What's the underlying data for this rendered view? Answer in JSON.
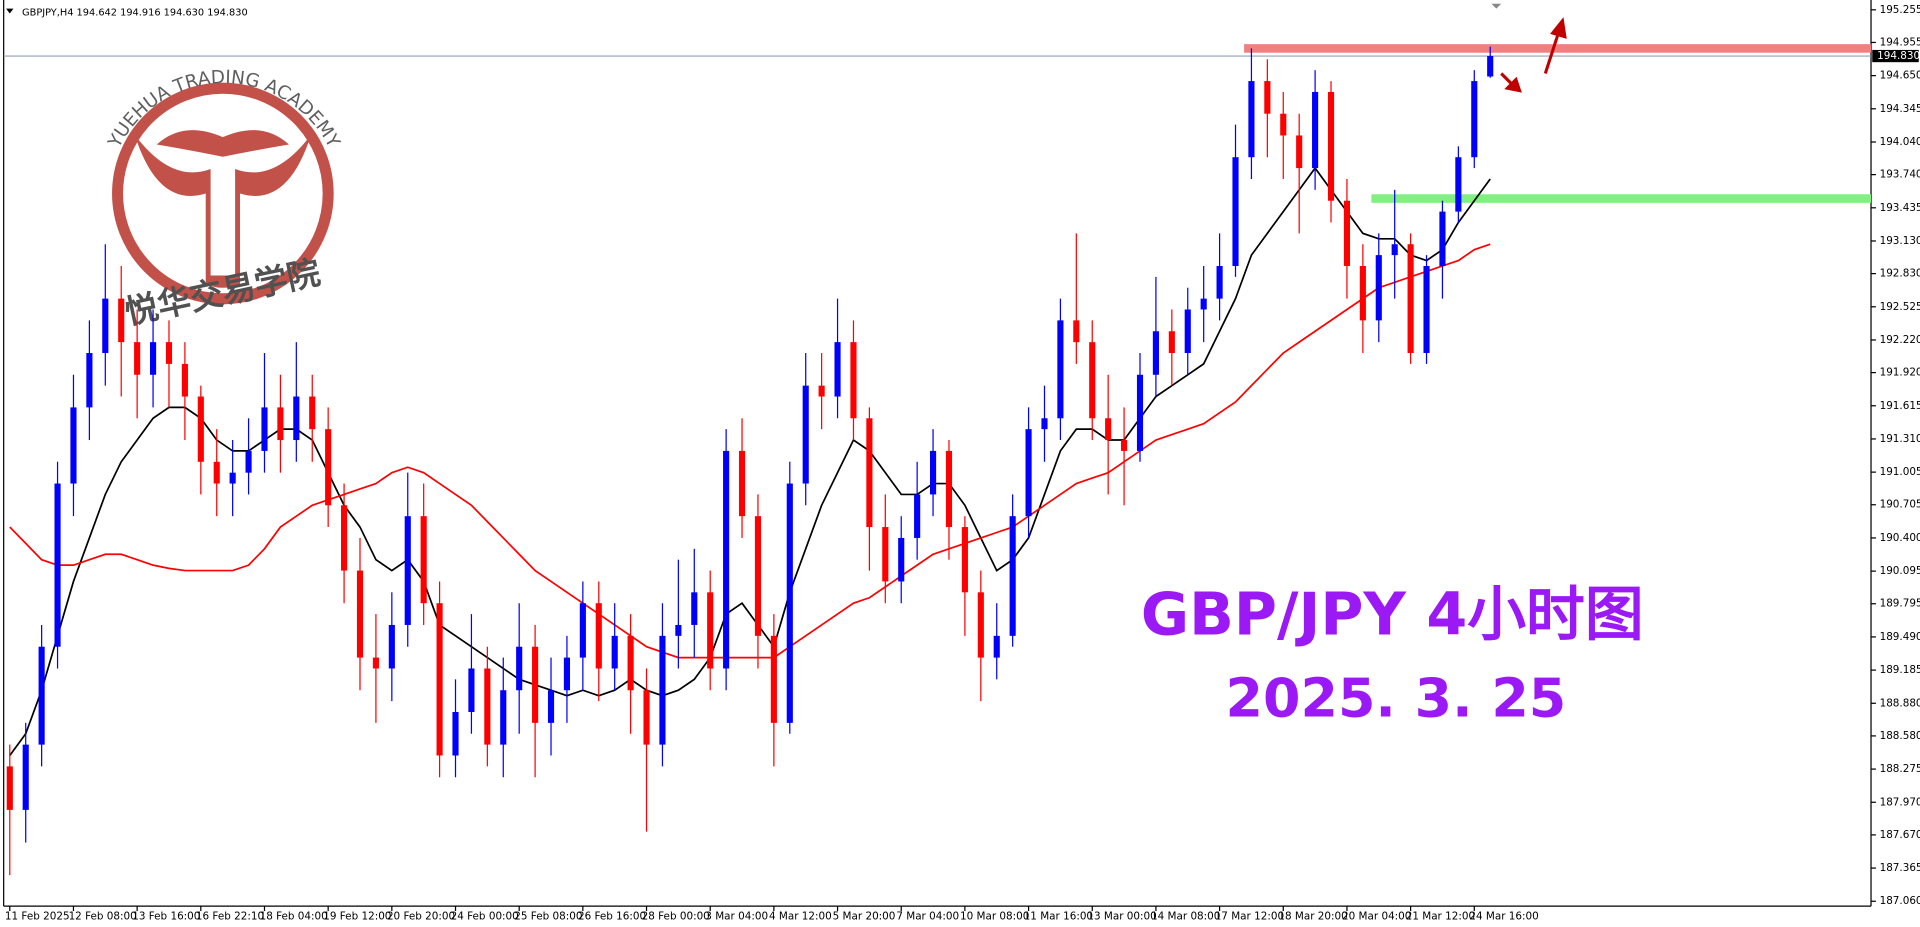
{
  "chart_data": {
    "type": "candlestick",
    "header": "GBPJPY,H4  194.642 194.916 194.630 194.830",
    "title": "GBP/JPY 4小时图",
    "subtitle": "2025. 3. 25",
    "watermark": {
      "text": "YUEHUA TRADING ACADEMY",
      "name": "悦华交易学院"
    },
    "up_color": "#0000ff",
    "down_color": "#ff0000",
    "categories": [
      "11 Feb 2025",
      null,
      null,
      null,
      "12 Feb 08:00",
      null,
      null,
      null,
      "13 Feb 16:00",
      null,
      null,
      null,
      "16 Feb 22:10",
      null,
      null,
      null,
      "18 Feb 04:00",
      null,
      null,
      null,
      "19 Feb 12:00",
      null,
      null,
      null,
      "20 Feb 20:00",
      null,
      null,
      null,
      "24 Feb 00:00",
      null,
      null,
      null,
      "25 Feb 08:00",
      null,
      null,
      null,
      "26 Feb 16:00",
      null,
      null,
      null,
      "28 Feb 00:00",
      null,
      null,
      null,
      "3 Mar 04:00",
      null,
      null,
      null,
      "4 Mar 12:00",
      null,
      null,
      null,
      "5 Mar 20:00",
      null,
      null,
      null,
      "7 Mar 04:00",
      null,
      null,
      null,
      "10 Mar 08:00",
      null,
      null,
      null,
      "11 Mar 16:00",
      null,
      null,
      null,
      "13 Mar 00:00",
      null,
      null,
      null,
      "14 Mar 08:00",
      null,
      null,
      null,
      "17 Mar 12:00",
      null,
      null,
      null,
      "18 Mar 20:00",
      null,
      null,
      null,
      "20 Mar 04:00",
      null,
      null,
      null,
      "21 Mar 12:00",
      null,
      null,
      null,
      "24 Mar 16:00",
      null
    ],
    "ohlc": [
      [
        188.3,
        188.5,
        187.3,
        187.9
      ],
      [
        187.9,
        188.7,
        187.6,
        188.5
      ],
      [
        188.5,
        189.6,
        188.3,
        189.4
      ],
      [
        189.4,
        191.1,
        189.2,
        190.9
      ],
      [
        190.9,
        191.9,
        190.6,
        191.6
      ],
      [
        191.6,
        192.4,
        191.3,
        192.1
      ],
      [
        192.1,
        193.1,
        191.8,
        192.6
      ],
      [
        192.6,
        192.9,
        191.7,
        192.2
      ],
      [
        192.2,
        192.5,
        191.5,
        191.9
      ],
      [
        191.9,
        192.5,
        191.6,
        192.2
      ],
      [
        192.2,
        192.4,
        191.6,
        192.0
      ],
      [
        192.0,
        192.2,
        191.3,
        191.7
      ],
      [
        191.7,
        191.8,
        190.8,
        191.1
      ],
      [
        191.1,
        191.4,
        190.6,
        190.9
      ],
      [
        190.9,
        191.3,
        190.6,
        191.0
      ],
      [
        191.0,
        191.5,
        190.8,
        191.2
      ],
      [
        191.2,
        192.1,
        191.0,
        191.6
      ],
      [
        191.6,
        191.9,
        191.0,
        191.3
      ],
      [
        191.3,
        192.2,
        191.1,
        191.7
      ],
      [
        191.7,
        191.9,
        191.1,
        191.4
      ],
      [
        191.4,
        191.6,
        190.5,
        190.7
      ],
      [
        190.7,
        190.9,
        189.8,
        190.1
      ],
      [
        190.1,
        190.4,
        189.0,
        189.3
      ],
      [
        189.3,
        189.7,
        188.7,
        189.2
      ],
      [
        189.2,
        189.9,
        188.9,
        189.6
      ],
      [
        189.6,
        191.0,
        189.4,
        190.6
      ],
      [
        190.6,
        190.9,
        189.6,
        189.8
      ],
      [
        189.8,
        190.0,
        188.2,
        188.4
      ],
      [
        188.4,
        189.1,
        188.2,
        188.8
      ],
      [
        188.8,
        189.7,
        188.6,
        189.2
      ],
      [
        189.2,
        189.4,
        188.3,
        188.5
      ],
      [
        188.5,
        189.3,
        188.2,
        189.0
      ],
      [
        189.0,
        189.8,
        188.6,
        189.4
      ],
      [
        189.4,
        189.6,
        188.2,
        188.7
      ],
      [
        188.7,
        189.3,
        188.4,
        189.0
      ],
      [
        189.0,
        189.5,
        188.7,
        189.3
      ],
      [
        189.3,
        190.0,
        189.0,
        189.8
      ],
      [
        189.8,
        190.0,
        188.9,
        189.2
      ],
      [
        189.2,
        189.8,
        189.0,
        189.5
      ],
      [
        189.5,
        189.7,
        188.6,
        189.0
      ],
      [
        189.0,
        189.2,
        187.7,
        188.5
      ],
      [
        188.5,
        189.8,
        188.3,
        189.5
      ],
      [
        189.5,
        190.2,
        189.2,
        189.6
      ],
      [
        189.6,
        190.3,
        189.3,
        189.9
      ],
      [
        189.9,
        190.1,
        189.0,
        189.2
      ],
      [
        189.2,
        191.4,
        189.0,
        191.2
      ],
      [
        191.2,
        191.5,
        190.4,
        190.6
      ],
      [
        190.6,
        190.8,
        189.2,
        189.5
      ],
      [
        189.5,
        189.7,
        188.3,
        188.7
      ],
      [
        188.7,
        191.1,
        188.6,
        190.9
      ],
      [
        190.9,
        192.1,
        190.7,
        191.8
      ],
      [
        191.8,
        192.1,
        191.4,
        191.7
      ],
      [
        191.7,
        192.6,
        191.5,
        192.2
      ],
      [
        192.2,
        192.4,
        191.3,
        191.5
      ],
      [
        191.5,
        191.6,
        190.1,
        190.5
      ],
      [
        190.5,
        190.8,
        189.8,
        190.0
      ],
      [
        190.0,
        190.6,
        189.8,
        190.4
      ],
      [
        190.4,
        191.1,
        190.2,
        190.8
      ],
      [
        190.8,
        191.4,
        190.6,
        191.2
      ],
      [
        191.2,
        191.3,
        190.2,
        190.5
      ],
      [
        190.5,
        190.6,
        189.5,
        189.9
      ],
      [
        189.9,
        190.1,
        188.9,
        189.3
      ],
      [
        189.3,
        189.8,
        189.1,
        189.5
      ],
      [
        189.5,
        190.8,
        189.4,
        190.6
      ],
      [
        190.6,
        191.6,
        190.4,
        191.4
      ],
      [
        191.4,
        191.8,
        191.1,
        191.5
      ],
      [
        191.5,
        192.6,
        191.3,
        192.4
      ],
      [
        192.4,
        193.2,
        192.0,
        192.2
      ],
      [
        192.2,
        192.4,
        191.3,
        191.5
      ],
      [
        191.5,
        191.9,
        190.8,
        191.3
      ],
      [
        191.3,
        191.6,
        190.7,
        191.2
      ],
      [
        191.2,
        192.1,
        191.1,
        191.9
      ],
      [
        191.9,
        192.8,
        191.7,
        192.3
      ],
      [
        192.3,
        192.5,
        191.8,
        192.1
      ],
      [
        192.1,
        192.7,
        191.9,
        192.5
      ],
      [
        192.5,
        192.9,
        192.2,
        192.6
      ],
      [
        192.6,
        193.2,
        192.4,
        192.9
      ],
      [
        192.9,
        194.2,
        192.8,
        193.9
      ],
      [
        193.9,
        194.9,
        193.7,
        194.6
      ],
      [
        194.6,
        194.8,
        193.9,
        194.3
      ],
      [
        194.3,
        194.5,
        193.7,
        194.1
      ],
      [
        194.1,
        194.3,
        193.2,
        193.8
      ],
      [
        193.8,
        194.7,
        193.6,
        194.5
      ],
      [
        194.5,
        194.6,
        193.3,
        193.5
      ],
      [
        193.5,
        193.7,
        192.6,
        192.9
      ],
      [
        192.9,
        193.1,
        192.1,
        192.4
      ],
      [
        192.4,
        193.2,
        192.2,
        193.0
      ],
      [
        193.0,
        193.6,
        192.6,
        193.1
      ],
      [
        193.1,
        193.2,
        192.0,
        192.1
      ],
      [
        192.1,
        193.0,
        192.0,
        192.9
      ],
      [
        192.9,
        193.5,
        192.6,
        193.4
      ],
      [
        193.4,
        194.0,
        193.3,
        193.9
      ],
      [
        193.9,
        194.7,
        193.8,
        194.6
      ],
      [
        194.642,
        194.916,
        194.63,
        194.83
      ]
    ],
    "series": [
      {
        "color": "#000000",
        "values": [
          188.4,
          188.6,
          189.0,
          189.5,
          190.0,
          190.4,
          190.8,
          191.1,
          191.3,
          191.5,
          191.6,
          191.6,
          191.5,
          191.3,
          191.2,
          191.2,
          191.3,
          191.4,
          191.4,
          191.3,
          191.0,
          190.7,
          190.5,
          190.2,
          190.1,
          190.2,
          190.0,
          189.6,
          189.5,
          189.4,
          189.3,
          189.2,
          189.1,
          189.05,
          189.0,
          188.95,
          189.0,
          188.95,
          189.0,
          189.1,
          189.0,
          188.95,
          189.0,
          189.1,
          189.3,
          189.7,
          189.8,
          189.6,
          189.4,
          189.9,
          190.3,
          190.7,
          191.0,
          191.3,
          191.2,
          191.0,
          190.8,
          190.8,
          190.9,
          190.9,
          190.7,
          190.4,
          190.1,
          190.2,
          190.4,
          190.8,
          191.2,
          191.4,
          191.4,
          191.3,
          191.3,
          191.5,
          191.7,
          191.8,
          191.9,
          192.0,
          192.3,
          192.6,
          193.0,
          193.2,
          193.4,
          193.6,
          193.8,
          193.6,
          193.4,
          193.2,
          193.15,
          193.15,
          193.0,
          192.95,
          193.05,
          193.3,
          193.5,
          193.7
        ]
      },
      {
        "color": "#ff0000",
        "values": [
          190.5,
          190.35,
          190.2,
          190.15,
          190.15,
          190.2,
          190.25,
          190.25,
          190.2,
          190.15,
          190.12,
          190.1,
          190.1,
          190.1,
          190.1,
          190.15,
          190.3,
          190.5,
          190.6,
          190.7,
          190.75,
          190.8,
          190.85,
          190.9,
          191.0,
          191.05,
          191.0,
          190.9,
          190.8,
          190.7,
          190.55,
          190.4,
          190.25,
          190.1,
          190.0,
          189.9,
          189.8,
          189.7,
          189.6,
          189.5,
          189.4,
          189.35,
          189.3,
          189.3,
          189.3,
          189.3,
          189.3,
          189.3,
          189.3,
          189.4,
          189.5,
          189.6,
          189.7,
          189.8,
          189.85,
          189.95,
          190.05,
          190.15,
          190.25,
          190.3,
          190.35,
          190.4,
          190.45,
          190.5,
          190.6,
          190.7,
          190.8,
          190.9,
          190.95,
          191.0,
          191.1,
          191.2,
          191.3,
          191.35,
          191.4,
          191.45,
          191.55,
          191.65,
          191.8,
          191.95,
          192.1,
          192.2,
          192.3,
          192.4,
          192.5,
          192.6,
          192.7,
          192.75,
          192.8,
          192.85,
          192.9,
          192.95,
          193.05,
          193.1
        ]
      }
    ],
    "levels": [
      {
        "value": 194.9,
        "color": "#f08080"
      },
      {
        "value": 193.52,
        "color": "#80f080"
      }
    ],
    "current_price": {
      "value": 194.83,
      "label": "194.830"
    },
    "ylim": [
      187.015,
      195.345
    ],
    "yticks": [
      195.255,
      194.955,
      {
        "value": 194.65,
        "label": "194.650"
      },
      194.345,
      {
        "value": 194.04,
        "label": "194.040"
      },
      {
        "value": 193.74,
        "label": "193.740"
      },
      193.435,
      {
        "value": 193.13,
        "label": "193.130"
      },
      {
        "value": 192.83,
        "label": "192.830"
      },
      192.525,
      {
        "value": 192.22,
        "label": "192.220"
      },
      {
        "value": 191.92,
        "label": "191.920"
      },
      191.615,
      {
        "value": 191.31,
        "label": "191.310"
      },
      191.005,
      190.705,
      {
        "value": 190.4,
        "label": "190.400"
      },
      190.095,
      189.795,
      {
        "value": 189.49,
        "label": "189.490"
      },
      189.185,
      {
        "value": 188.88,
        "label": "188.880"
      },
      {
        "value": 188.58,
        "label": "188.580"
      },
      188.275,
      {
        "value": 187.97,
        "label": "187.970"
      },
      {
        "value": 187.67,
        "label": "187.670"
      },
      187.365,
      {
        "value": 187.06,
        "label": "187.060"
      }
    ]
  }
}
